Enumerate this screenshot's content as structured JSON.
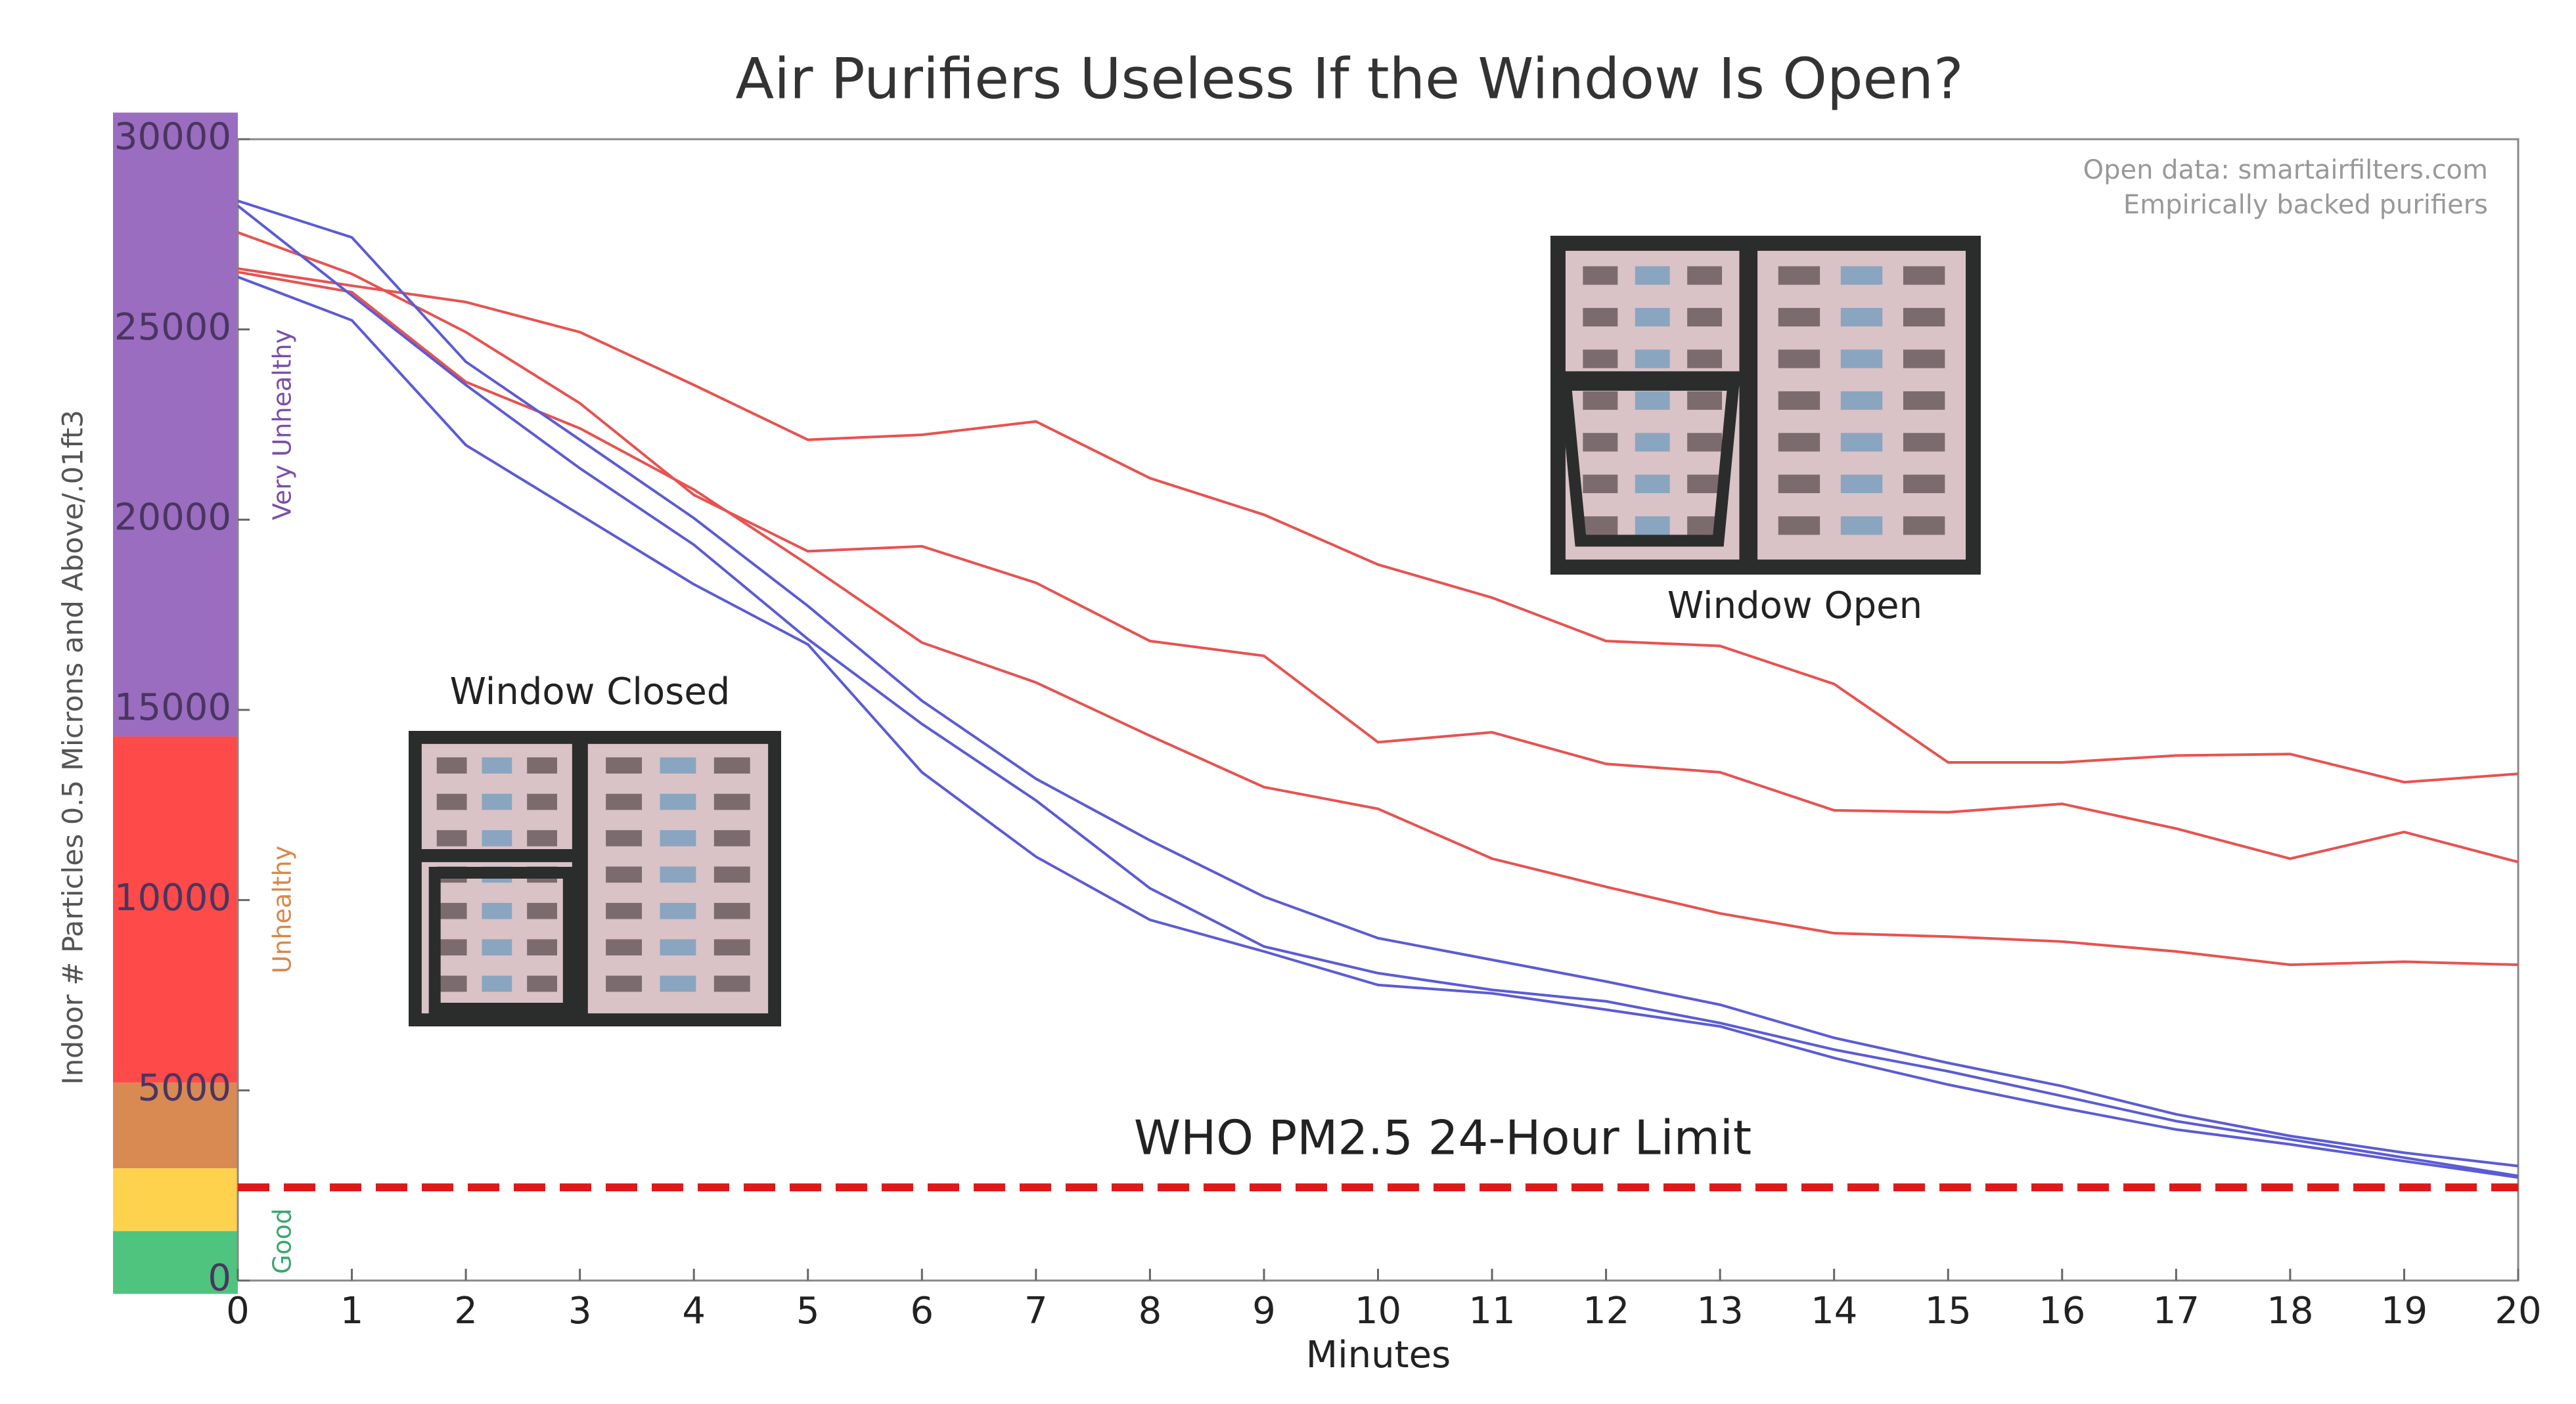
{
  "chart_data": {
    "type": "line",
    "title": "Air Purifiers Useless If the Window Is Open?",
    "xlabel": "Minutes",
    "ylabel": "Indoor # Particles 0.5 Microns and Above/.01ft3",
    "source_lines": [
      "Open data: smartairfilters.com",
      "Empirically backed purifiers"
    ],
    "x": [
      0,
      1,
      2,
      3,
      4,
      5,
      6,
      7,
      8,
      9,
      10,
      11,
      12,
      13,
      14,
      15,
      16,
      17,
      18,
      19,
      20
    ],
    "xlim": [
      0,
      20
    ],
    "xticks": [
      0,
      1,
      2,
      3,
      4,
      5,
      6,
      7,
      8,
      9,
      10,
      11,
      12,
      13,
      14,
      15,
      16,
      17,
      18,
      19,
      20
    ],
    "ylim": [
      0,
      30000
    ],
    "yticks": [
      0,
      5000,
      10000,
      15000,
      20000,
      25000,
      30000
    ],
    "series": [
      {
        "color": "#e8524f",
        "values": [
          26600,
          26150,
          25720,
          24930,
          23540,
          22100,
          22230,
          22580,
          21090,
          20130,
          18820,
          17950,
          16810,
          16680,
          15680,
          13620,
          13620,
          13800,
          13840,
          13100,
          13320
        ]
      },
      {
        "color": "#e8524f",
        "values": [
          27550,
          26460,
          24930,
          23060,
          20650,
          19170,
          19300,
          18340,
          16810,
          16420,
          14150,
          14410,
          13580,
          13360,
          12360,
          12310,
          12530,
          11880,
          11090,
          11790,
          11000
        ]
      },
      {
        "color": "#e8524f",
        "values": [
          26510,
          25980,
          23620,
          22400,
          20790,
          18820,
          16770,
          15720,
          14320,
          12970,
          12400,
          11090,
          10350,
          9650,
          9130,
          9040,
          8910,
          8650,
          8300,
          8380,
          8300
        ]
      },
      {
        "color": "#5b5bd6",
        "values": [
          28380,
          27420,
          24150,
          22100,
          20040,
          17730,
          15240,
          13190,
          11570,
          10090,
          9000,
          8430,
          7860,
          7250,
          6380,
          5720,
          5110,
          4370,
          3800,
          3360,
          3010
        ]
      },
      {
        "color": "#5b5bd6",
        "values": [
          28250,
          25890,
          23540,
          21350,
          19340,
          16860,
          14630,
          12620,
          10310,
          8780,
          8080,
          7640,
          7340,
          6770,
          6070,
          5500,
          4850,
          4190,
          3710,
          3230,
          2750
        ]
      },
      {
        "color": "#5b5bd6",
        "values": [
          26380,
          25240,
          21960,
          20130,
          18300,
          16720,
          13360,
          11140,
          9480,
          8650,
          7770,
          7550,
          7120,
          6680,
          5850,
          5150,
          4540,
          3970,
          3580,
          3140,
          2710
        ]
      }
    ],
    "bands": [
      {
        "from": 14300,
        "to": 30700,
        "color": "#9a6dc0",
        "label": "Very Unhealthy",
        "label_color": "#7b4fa8"
      },
      {
        "from": 5200,
        "to": 14300,
        "color": "#ff4a4a",
        "label": "Unhealthy",
        "label_color": "#d9874a"
      },
      {
        "from": 2950,
        "to": 5200,
        "color": "#d98a52"
      },
      {
        "from": 1300,
        "to": 2950,
        "color": "#ffd24d"
      },
      {
        "from": -350,
        "to": 1300,
        "color": "#4fc47e",
        "label": "Good",
        "label_color": "#3aa76d"
      }
    ],
    "limit": {
      "value": 2450,
      "label": "WHO PM2.5 24-Hour Limit",
      "color": "#e01818"
    },
    "photos": [
      "Window Closed",
      "Window Open"
    ]
  }
}
